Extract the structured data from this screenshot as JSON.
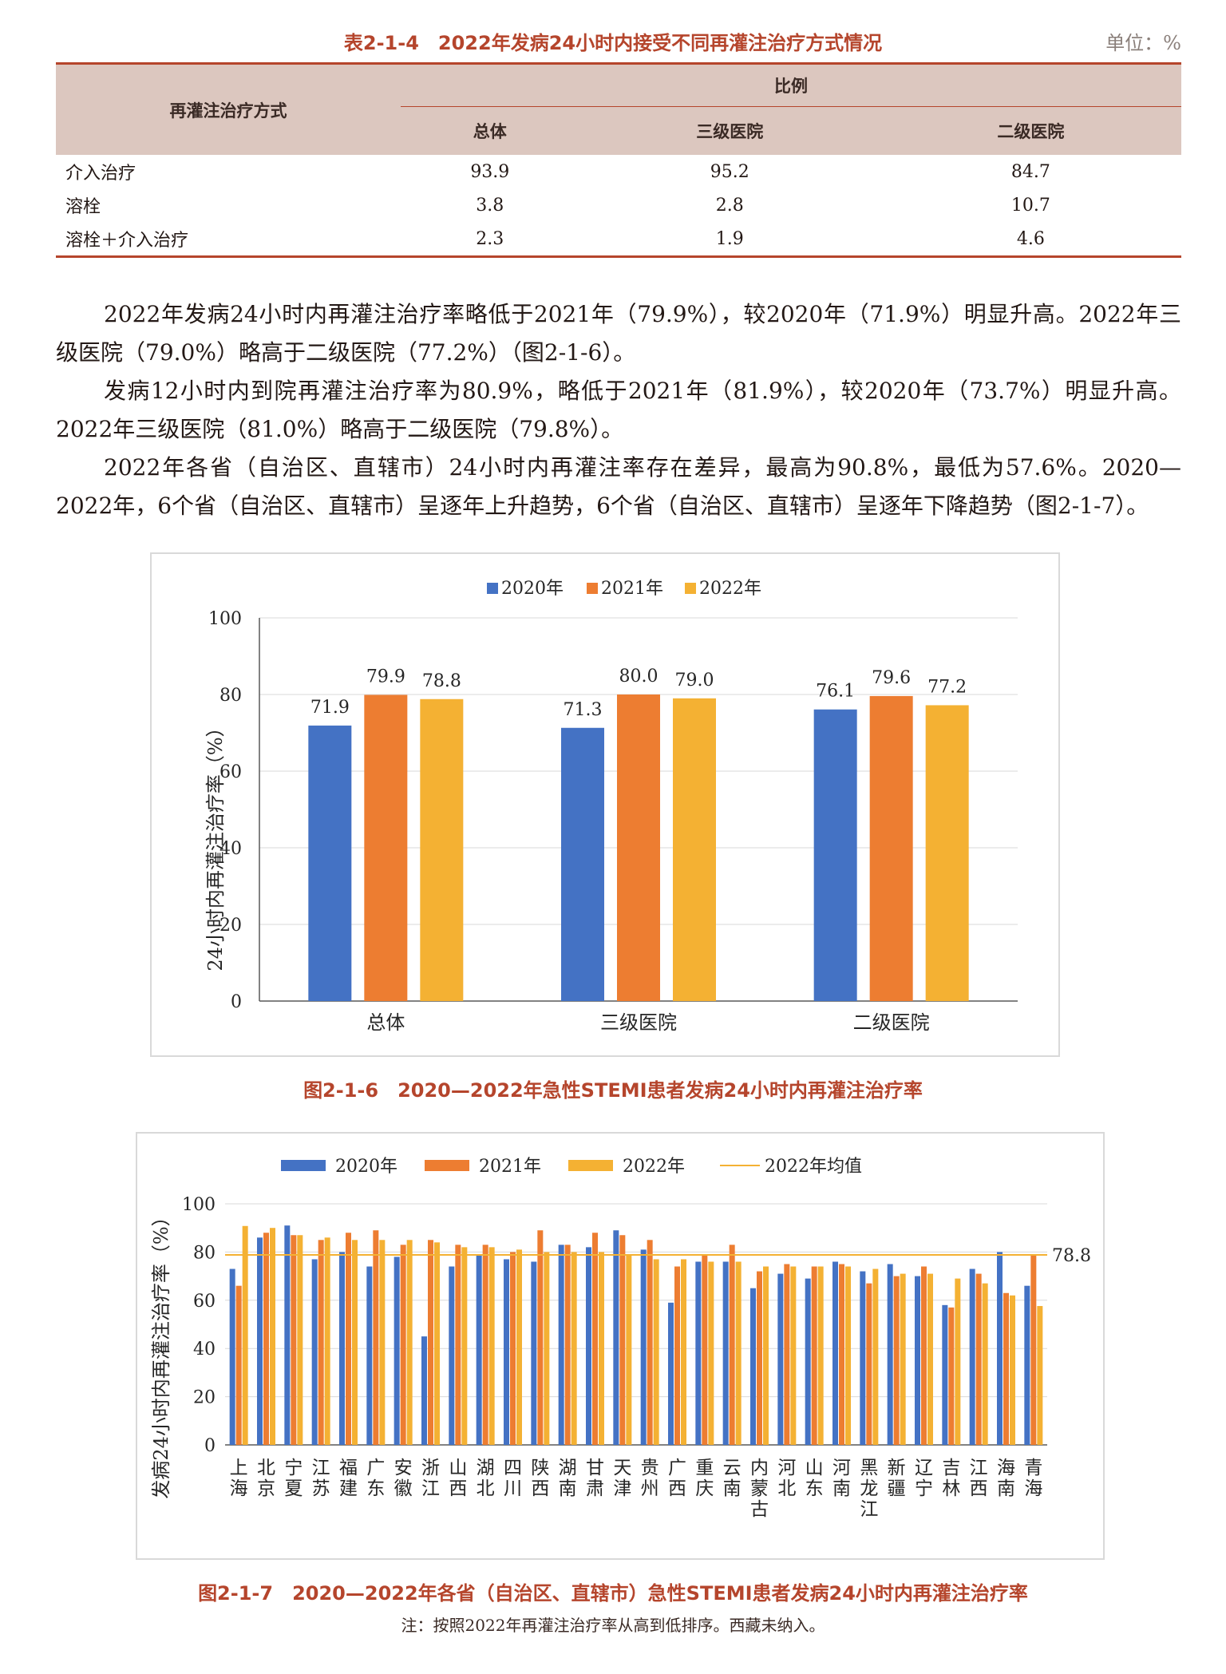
{
  "table": {
    "title": "表2-1-4　2022年发病24小时内接受不同再灌注治疗方式情况",
    "unit": "单位：%",
    "head_method": "再灌注治疗方式",
    "head_ratio": "比例",
    "columns": [
      "总体",
      "三级医院",
      "二级医院"
    ],
    "rows": [
      {
        "label": "介入治疗",
        "values": [
          "93.9",
          "95.2",
          "84.7"
        ]
      },
      {
        "label": "溶栓",
        "values": [
          "3.8",
          "2.8",
          "10.7"
        ]
      },
      {
        "label": "溶栓＋介入治疗",
        "values": [
          "2.3",
          "1.9",
          "4.6"
        ]
      }
    ]
  },
  "paragraphs": [
    "2022年发病24小时内再灌注治疗率略低于2021年（79.9%），较2020年（71.9%）明显升高。2022年三级医院（79.0%）略高于二级医院（77.2%）（图2-1-6）。",
    "发病12小时内到院再灌注治疗率为80.9%，略低于2021年（81.9%），较2020年（73.7%）明显升高。2022年三级医院（81.0%）略高于二级医院（79.8%）。",
    "2022年各省（自治区、直辖市）24小时内再灌注率存在差异，最高为90.8%，最低为57.6%。2020—2022年，6个省（自治区、直辖市）呈逐年上升趋势，6个省（自治区、直辖市）呈逐年下降趋势（图2-1-7）。"
  ],
  "fig1": {
    "caption": "图2-1-6　2020—2022年急性STEMI患者发病24小时内再灌注治疗率",
    "ylabel": "24小时内再灌注治疗率（%）"
  },
  "fig2": {
    "caption": "图2-1-7　2020—2022年各省（自治区、直辖市）急性STEMI患者发病24小时内再灌注治疗率",
    "note": "注：按照2022年再灌注治疗率从高到低排序。西藏未纳入。",
    "ylabel": "发病24小时内再灌注治疗率（%）",
    "mean_label": "78.8"
  },
  "chart_data": [
    {
      "type": "bar",
      "categories": [
        "总体",
        "三级医院",
        "二级医院"
      ],
      "series": [
        {
          "name": "2020年",
          "color": "#4472c4",
          "values": [
            71.9,
            71.3,
            76.1
          ]
        },
        {
          "name": "2021年",
          "color": "#ed7d31",
          "values": [
            79.9,
            80.0,
            79.6
          ]
        },
        {
          "name": "2022年",
          "color": "#f4b133",
          "values": [
            78.8,
            79.0,
            77.2
          ]
        }
      ],
      "ylim": [
        0,
        100
      ],
      "yticks": [
        0,
        20,
        40,
        60,
        80,
        100
      ],
      "value_labels": [
        [
          "71.9",
          "71.3",
          "76.1"
        ],
        [
          "79.9",
          "80.0",
          "79.6"
        ],
        [
          "78.8",
          "79.0",
          "77.2"
        ]
      ],
      "legend": "top",
      "grid": true
    },
    {
      "type": "bar",
      "categories": [
        "上海",
        "北京",
        "宁夏",
        "江苏",
        "福建",
        "广东",
        "安徽",
        "浙江",
        "山西",
        "湖北",
        "四川",
        "陕西",
        "湖南",
        "甘肃",
        "天津",
        "贵州",
        "广西",
        "重庆",
        "云南",
        "内蒙古",
        "河北",
        "山东",
        "河南",
        "黑龙江",
        "新疆",
        "辽宁",
        "吉林",
        "江西",
        "海南",
        "青海"
      ],
      "series": [
        {
          "name": "2020年",
          "color": "#4472c4",
          "values": [
            73,
            86,
            91,
            77,
            80,
            74,
            78,
            45,
            74,
            79,
            77,
            76,
            83,
            82,
            89,
            81,
            59,
            76,
            76,
            65,
            71,
            69,
            76,
            72,
            75,
            70,
            58,
            73,
            80,
            66
          ]
        },
        {
          "name": "2021年",
          "color": "#ed7d31",
          "values": [
            66,
            88,
            87,
            85,
            88,
            89,
            83,
            85,
            83,
            83,
            80,
            89,
            83,
            88,
            87,
            85,
            74,
            79,
            83,
            72,
            75,
            74,
            75,
            67,
            70,
            74,
            57,
            71,
            63,
            79
          ]
        },
        {
          "name": "2022年",
          "color": "#f4b133",
          "values": [
            90.8,
            90,
            87,
            86,
            85,
            85,
            85,
            84,
            82,
            82,
            81,
            80,
            80,
            80,
            79,
            77,
            77,
            76,
            76,
            74,
            74,
            74,
            74,
            73,
            71,
            71,
            69,
            67,
            62,
            57.6
          ]
        },
        {
          "name": "2022年均值",
          "color": "#f4b133",
          "type": "line",
          "value": 78.8
        }
      ],
      "ylim": [
        0,
        100
      ],
      "yticks": [
        0,
        20,
        40,
        60,
        80,
        100
      ],
      "legend": "top",
      "grid": true
    }
  ]
}
